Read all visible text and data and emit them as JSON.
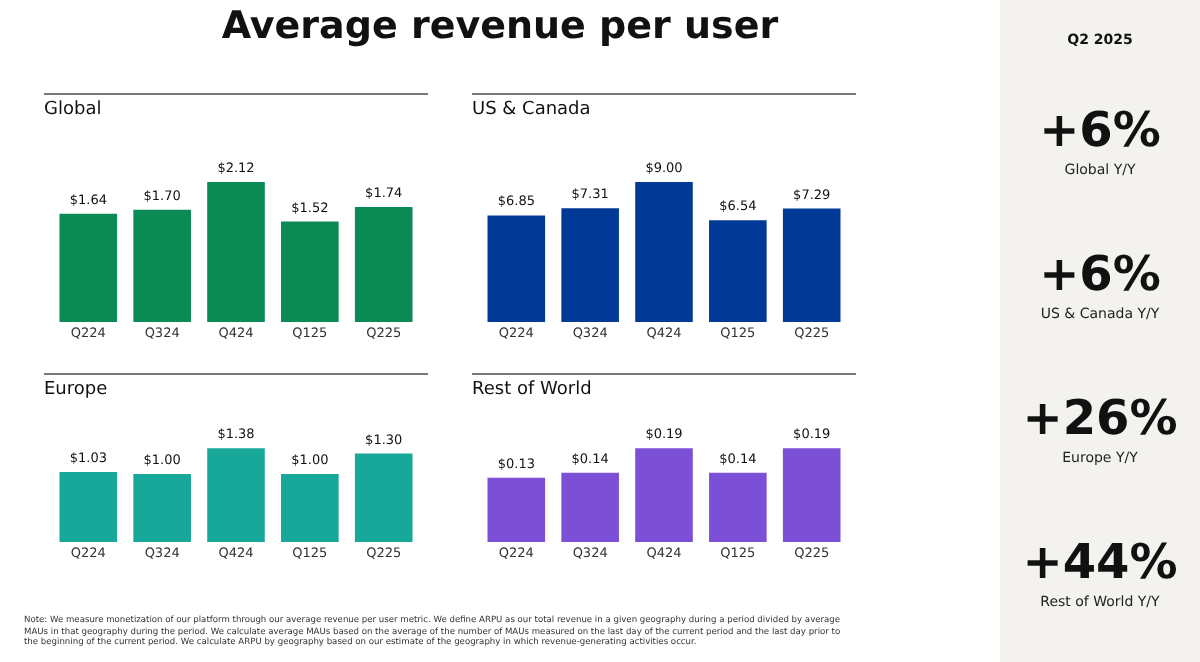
{
  "chart_data": [
    {
      "type": "other",
      "title": "Average revenue per user",
      "annotations": [
        "Note: We measure monetization of our platform through our average revenue per user metric. We define ARPU as our total revenue in a given geography during a period divided by average MAUs in that geography during the period. We calculate average MAUs based on the average of the number of MAUs measured on the last day of the current period and the last day prior to the beginning of the current period. We calculate ARPU by geography based on our estimate of the geography in which revenue-generating activities occur."
      ]
    },
    {
      "type": "bar",
      "title": "Global",
      "categories": [
        "Q224",
        "Q324",
        "Q424",
        "Q125",
        "Q225"
      ],
      "values": [
        1.64,
        1.7,
        2.12,
        1.52,
        1.74
      ],
      "value_labels": [
        "$1.64",
        "$1.70",
        "$2.12",
        "$1.52",
        "$1.74"
      ],
      "color": "#0a8a55",
      "tick_labels": "x"
    },
    {
      "type": "bar",
      "title": "US & Canada",
      "categories": [
        "Q224",
        "Q324",
        "Q424",
        "Q125",
        "Q225"
      ],
      "values": [
        6.85,
        7.31,
        9.0,
        6.54,
        7.29
      ],
      "value_labels": [
        "$6.85",
        "$7.31",
        "$9.00",
        "$6.54",
        "$7.29"
      ],
      "color": "#003a96",
      "tick_labels": "x"
    },
    {
      "type": "bar",
      "title": "Europe",
      "categories": [
        "Q224",
        "Q324",
        "Q424",
        "Q125",
        "Q225"
      ],
      "values": [
        1.03,
        1.0,
        1.38,
        1.0,
        1.3
      ],
      "value_labels": [
        "$1.03",
        "$1.00",
        "$1.38",
        "$1.00",
        "$1.30"
      ],
      "color": "#17a89a",
      "tick_labels": "x"
    },
    {
      "type": "bar",
      "title": "Rest of World",
      "categories": [
        "Q224",
        "Q324",
        "Q424",
        "Q125",
        "Q225"
      ],
      "values": [
        0.13,
        0.14,
        0.19,
        0.14,
        0.19
      ],
      "value_labels": [
        "$0.13",
        "$0.14",
        "$0.19",
        "$0.14",
        "$0.19"
      ],
      "color": "#7b4fd6",
      "tick_labels": "x"
    },
    {
      "type": "other",
      "title": "Q2 2025",
      "annotations": [
        "+6%",
        "Global Y/Y",
        "+6%",
        "US & Canada Y/Y",
        "+26%",
        "Europe Y/Y",
        "+44%",
        "Rest of World Y/Y"
      ]
    }
  ]
}
